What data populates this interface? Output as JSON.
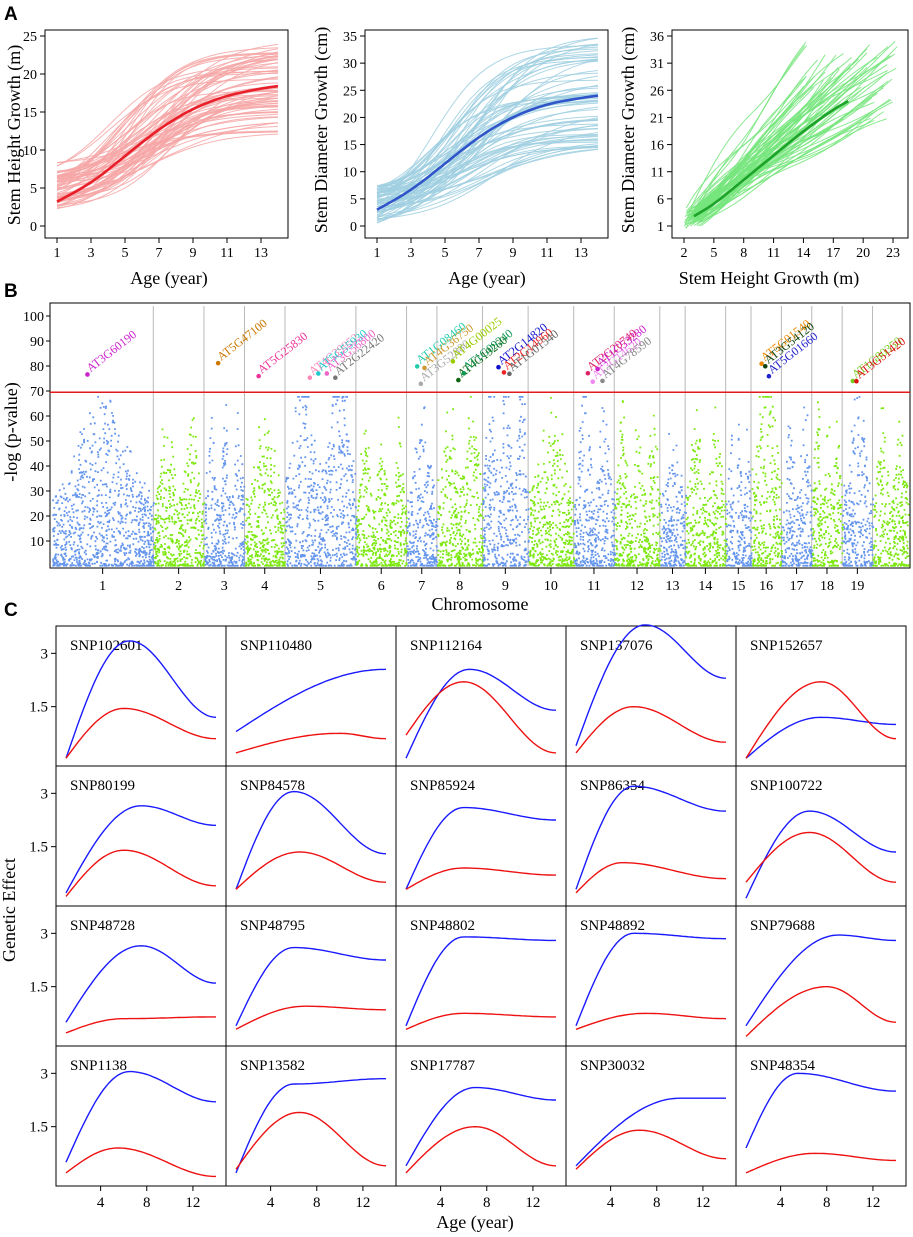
{
  "figure": {
    "panel_letters": [
      "A",
      "B",
      "C"
    ],
    "colors": {
      "pink_light": "#f6a6a6",
      "pink_dark": "#e8202a",
      "blue_light": "#9fcfe0",
      "blue_dark": "#2f55c8",
      "green_light": "#76e57c",
      "green_dark": "#1ea32a",
      "manhattan_blue": "#6495ed",
      "manhattan_green": "#7ce80f",
      "threshold": "#e21a1a",
      "grid": "#b8b8b8",
      "effect_blue": "#1a1aff",
      "effect_red": "#ee1111"
    }
  },
  "chart_data": [
    {
      "id": "A1",
      "type": "line",
      "title": "",
      "xlabel": "Age (year)",
      "ylabel": "Stem Height Growth (m)",
      "xlim": [
        1,
        14
      ],
      "ylim": [
        0,
        25
      ],
      "x_ticks": [
        1,
        3,
        5,
        7,
        9,
        11,
        13
      ],
      "y_ticks": [
        0,
        5,
        10,
        15,
        20,
        25
      ],
      "individual_curves": {
        "count": 70,
        "start_range": [
          2,
          8.5
        ],
        "asymptote_range": [
          12,
          24
        ]
      },
      "mean_curve": {
        "x": [
          1,
          3,
          5,
          7,
          9,
          11,
          13,
          14
        ],
        "y": [
          3.2,
          5.6,
          9.2,
          12.8,
          15.5,
          17.2,
          18.1,
          18.4
        ]
      }
    },
    {
      "id": "A2",
      "type": "line",
      "xlabel": "Age (year)",
      "ylabel": "Stem Diameter Growth (cm)",
      "xlim": [
        1,
        14
      ],
      "ylim": [
        0,
        35
      ],
      "x_ticks": [
        1,
        3,
        5,
        7,
        9,
        11,
        13
      ],
      "y_ticks": [
        0,
        5,
        10,
        15,
        20,
        25,
        30,
        35
      ],
      "individual_curves": {
        "count": 70,
        "start_range": [
          0.5,
          7.5
        ],
        "asymptote_range": [
          14,
          35
        ]
      },
      "mean_curve": {
        "x": [
          1,
          3,
          5,
          7,
          9,
          11,
          13,
          14
        ],
        "y": [
          3,
          6.5,
          11.5,
          16.5,
          20.2,
          22.5,
          23.6,
          24
        ]
      }
    },
    {
      "id": "A3",
      "type": "line",
      "xlabel": "Stem Height Growth (m)",
      "ylabel": "Stem Diameter Growth (cm)",
      "xlim": [
        2,
        23.5
      ],
      "ylim": [
        1,
        36
      ],
      "x_ticks": [
        2,
        5,
        8,
        11,
        14,
        17,
        20,
        23
      ],
      "y_ticks": [
        1,
        6,
        11,
        16,
        21,
        26,
        31,
        36
      ],
      "individual_curves": {
        "count": 70
      },
      "mean_curve": {
        "x": [
          3,
          5,
          8,
          11,
          14,
          17,
          18.5
        ],
        "y": [
          2.8,
          5,
          9.5,
          14,
          18.5,
          22.5,
          24
        ]
      }
    },
    {
      "id": "B",
      "type": "scatter",
      "xlabel": "Chromosome",
      "ylabel": "-log (p-value)",
      "ylim": [
        0,
        100
      ],
      "y_ticks": [
        10,
        20,
        30,
        40,
        50,
        60,
        70,
        80,
        90,
        100
      ],
      "threshold": 69.5,
      "chromosomes": [
        "1",
        "2",
        "3",
        "4",
        "5",
        "6",
        "7",
        "8",
        "9",
        "10",
        "11",
        "12",
        "13",
        "14",
        "15",
        "16",
        "17",
        "18",
        "19"
      ],
      "chromosome_sizes": [
        20,
        10,
        8,
        8,
        14,
        10,
        6,
        9,
        9,
        9,
        8,
        9,
        5,
        8,
        5,
        6,
        6,
        6,
        6
      ],
      "chromosome_peaks": [
        72,
        68,
        70,
        66,
        96,
        64,
        70,
        82,
        92,
        72,
        78,
        74,
        66,
        68,
        66,
        100,
        70,
        76,
        75
      ],
      "extra_segment": {
        "size": 7,
        "peak": 72
      },
      "significant_genes": [
        {
          "name": "AT3G60190",
          "chr": 1,
          "color": "#cc22cc"
        },
        {
          "name": "AT5G47100",
          "chr": 3,
          "color": "#cc7700"
        },
        {
          "name": "AT5G25830",
          "chr": 4,
          "color": "#ee3399"
        },
        {
          "name": "AT4G39952",
          "chr": 5,
          "color": "#ff88bb"
        },
        {
          "name": "AT5G55930",
          "chr": 5,
          "color": "#22cccc"
        },
        {
          "name": "AT3G56800",
          "chr": 5,
          "color": "#ee66cc"
        },
        {
          "name": "AT2G22420",
          "chr": 5,
          "color": "#777777"
        },
        {
          "name": "AT1G08460",
          "chr": 7,
          "color": "#22ccaa"
        },
        {
          "name": "AT3G52880",
          "chr": 7,
          "color": "#aaaaaa"
        },
        {
          "name": "AT4G36750",
          "chr": 7,
          "color": "#cc9933"
        },
        {
          "name": "AT4G00025",
          "chr": 8,
          "color": "#99cc00"
        },
        {
          "name": "AT4G19260",
          "chr": 8,
          "color": "#116611"
        },
        {
          "name": "AT1G09240",
          "chr": 8,
          "color": "#119955"
        },
        {
          "name": "AT2G14820",
          "chr": 9,
          "color": "#1111cc"
        },
        {
          "name": "AT2G14960",
          "chr": 9,
          "color": "#ee2222"
        },
        {
          "name": "AT1G01540",
          "chr": 9,
          "color": "#666666"
        },
        {
          "name": "AT2G20740",
          "chr": 11,
          "color": "#dd2266"
        },
        {
          "name": "AT3G14620",
          "chr": 11,
          "color": "#ee88ee"
        },
        {
          "name": "AT1G53280",
          "chr": 11,
          "color": "#cc22cc"
        },
        {
          "name": "AT4G78590",
          "chr": 11,
          "color": "#888888"
        },
        {
          "name": "AT5G01540",
          "chr": 16,
          "color": "#ee8800"
        },
        {
          "name": "AT3G54120",
          "chr": 16,
          "color": "#114411"
        },
        {
          "name": "AT5G01660",
          "chr": 16,
          "color": "#2222cc"
        },
        {
          "name": "AT1G80350",
          "chr": 19,
          "color": "#77cc22"
        },
        {
          "name": "AT3G51420",
          "chr": 19,
          "color": "#dd1111"
        }
      ]
    },
    {
      "id": "C",
      "type": "line",
      "xlabel": "Age (year)",
      "ylabel": "Genetic Effect",
      "xlim": [
        1,
        14
      ],
      "ylim": [
        0,
        3.6
      ],
      "x_ticks": [
        4,
        8,
        12
      ],
      "y_ticks": [
        1.5,
        3
      ],
      "y_tick_labels": [
        "1.5",
        "3"
      ],
      "series_names": [
        "blue",
        "red"
      ],
      "panels": [
        {
          "snp": "SNP102601",
          "blue": {
            "a": 0.05,
            "peak": 3.35,
            "tp": 6.5,
            "end": 1.2
          },
          "red": {
            "a": 0.05,
            "peak": 1.45,
            "tp": 6,
            "end": 0.6
          }
        },
        {
          "snp": "SNP110480",
          "blue": {
            "a": 0.8,
            "peak": 2.55,
            "tp": 14,
            "end": 2.55
          },
          "red": {
            "a": 0.2,
            "peak": 0.75,
            "tp": 10,
            "end": 0.6
          }
        },
        {
          "snp": "SNP112164",
          "blue": {
            "a": 0.05,
            "peak": 2.55,
            "tp": 6.5,
            "end": 1.4
          },
          "red": {
            "a": 0.7,
            "peak": 2.2,
            "tp": 6,
            "end": 0.2
          }
        },
        {
          "snp": "SNP137076",
          "blue": {
            "a": 0.4,
            "peak": 3.8,
            "tp": 7,
            "end": 2.3
          },
          "red": {
            "a": 0.2,
            "peak": 1.5,
            "tp": 6,
            "end": 0.5
          }
        },
        {
          "snp": "SNP152657",
          "blue": {
            "a": 0.05,
            "peak": 1.2,
            "tp": 7.5,
            "end": 1.0
          },
          "red": {
            "a": 0.05,
            "peak": 2.2,
            "tp": 7.5,
            "end": 0.6
          }
        },
        {
          "snp": "SNP80199",
          "blue": {
            "a": 0.2,
            "peak": 2.65,
            "tp": 7.5,
            "end": 2.1
          },
          "red": {
            "a": 0.1,
            "peak": 1.4,
            "tp": 6,
            "end": 0.4
          }
        },
        {
          "snp": "SNP84578",
          "blue": {
            "a": 0.3,
            "peak": 3.05,
            "tp": 6,
            "end": 1.3
          },
          "red": {
            "a": 0.3,
            "peak": 1.35,
            "tp": 6.5,
            "end": 0.5
          }
        },
        {
          "snp": "SNP85924",
          "blue": {
            "a": 0.3,
            "peak": 2.6,
            "tp": 6,
            "end": 2.25
          },
          "red": {
            "a": 0.3,
            "peak": 0.9,
            "tp": 6,
            "end": 0.7
          }
        },
        {
          "snp": "SNP86354",
          "blue": {
            "a": 0.3,
            "peak": 3.2,
            "tp": 6,
            "end": 2.5
          },
          "red": {
            "a": 0.2,
            "peak": 1.05,
            "tp": 5,
            "end": 0.6
          }
        },
        {
          "snp": "SNP100722",
          "blue": {
            "a": 0.05,
            "peak": 2.5,
            "tp": 6.5,
            "end": 1.35
          },
          "red": {
            "a": 0.5,
            "peak": 1.9,
            "tp": 6.5,
            "end": 0.5
          }
        },
        {
          "snp": "SNP48728",
          "blue": {
            "a": 0.5,
            "peak": 2.65,
            "tp": 7.5,
            "end": 1.6
          },
          "red": {
            "a": 0.2,
            "peak": 0.6,
            "tp": 6,
            "end": 0.65
          }
        },
        {
          "snp": "SNP48795",
          "blue": {
            "a": 0.4,
            "peak": 2.6,
            "tp": 6,
            "end": 2.25
          },
          "red": {
            "a": 0.3,
            "peak": 0.95,
            "tp": 7,
            "end": 0.85
          }
        },
        {
          "snp": "SNP48802",
          "blue": {
            "a": 0.4,
            "peak": 2.9,
            "tp": 6,
            "end": 2.8
          },
          "red": {
            "a": 0.3,
            "peak": 0.75,
            "tp": 6,
            "end": 0.65
          }
        },
        {
          "snp": "SNP48892",
          "blue": {
            "a": 0.4,
            "peak": 3.0,
            "tp": 6,
            "end": 2.85
          },
          "red": {
            "a": 0.3,
            "peak": 0.75,
            "tp": 7,
            "end": 0.6
          }
        },
        {
          "snp": "SNP79688",
          "blue": {
            "a": 0.4,
            "peak": 2.95,
            "tp": 9,
            "end": 2.8
          },
          "red": {
            "a": 0.1,
            "peak": 1.5,
            "tp": 8,
            "end": 0.5
          }
        },
        {
          "snp": "SNP1138",
          "blue": {
            "a": 0.5,
            "peak": 3.05,
            "tp": 6.5,
            "end": 2.2
          },
          "red": {
            "a": 0.2,
            "peak": 0.9,
            "tp": 5.5,
            "end": 0.1
          }
        },
        {
          "snp": "SNP13582",
          "blue": {
            "a": 0.2,
            "peak": 2.7,
            "tp": 6,
            "end": 2.85
          },
          "red": {
            "a": 0.3,
            "peak": 1.9,
            "tp": 6.5,
            "end": 0.4
          }
        },
        {
          "snp": "SNP17787",
          "blue": {
            "a": 0.4,
            "peak": 2.6,
            "tp": 7,
            "end": 2.25
          },
          "red": {
            "a": 0.2,
            "peak": 1.5,
            "tp": 7,
            "end": 0.4
          }
        },
        {
          "snp": "SNP30032",
          "blue": {
            "a": 0.4,
            "peak": 2.3,
            "tp": 10,
            "end": 2.3
          },
          "red": {
            "a": 0.3,
            "peak": 1.4,
            "tp": 6.5,
            "end": 0.6
          }
        },
        {
          "snp": "SNP48354",
          "blue": {
            "a": 0.9,
            "peak": 3.0,
            "tp": 5.5,
            "end": 2.5
          },
          "red": {
            "a": 0.2,
            "peak": 0.75,
            "tp": 7,
            "end": 0.55
          }
        }
      ]
    }
  ]
}
